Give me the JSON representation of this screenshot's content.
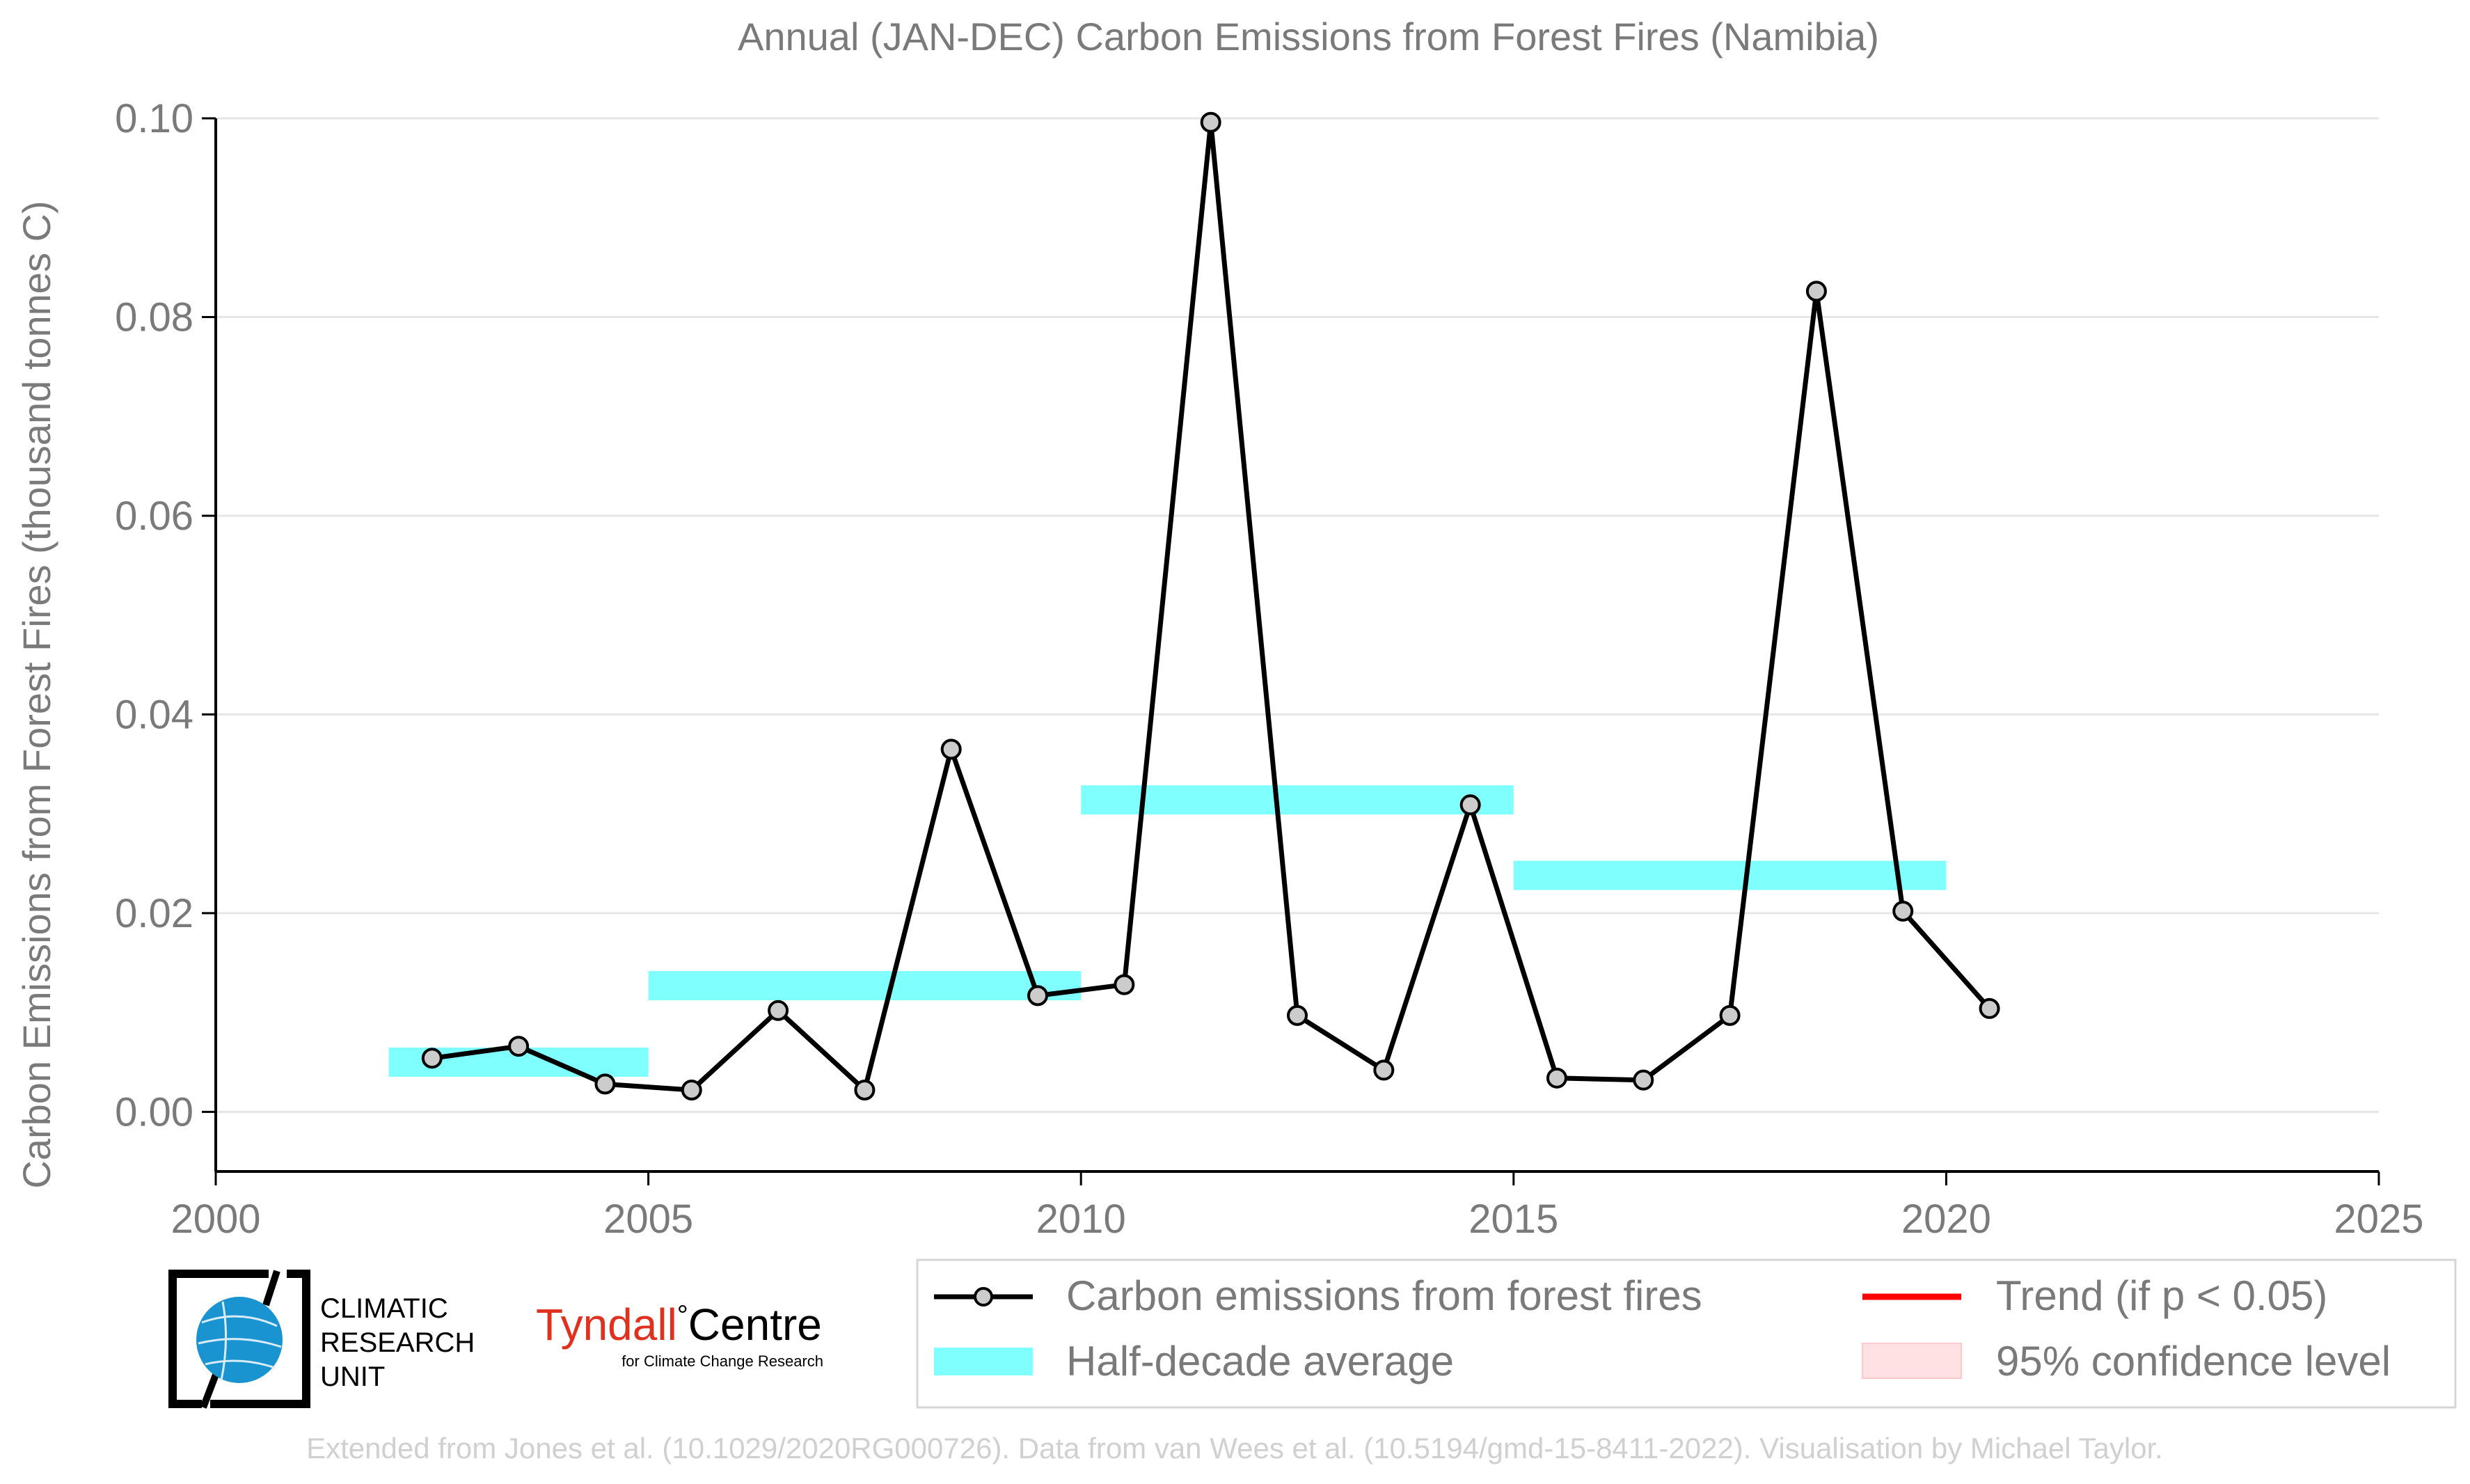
{
  "chart_data": {
    "type": "line",
    "title": "Annual (JAN-DEC) Carbon Emissions from Forest Fires (Namibia)",
    "xlabel": "",
    "ylabel": "Carbon Emissions from Forest Fires (thousand tonnes C)",
    "xlim": [
      2000,
      2025
    ],
    "ylim": [
      -0.006,
      0.1
    ],
    "x_ticks": [
      2000,
      2005,
      2010,
      2015,
      2020,
      2025
    ],
    "y_ticks": [
      0.0,
      0.02,
      0.04,
      0.06,
      0.08,
      0.1
    ],
    "y_tick_labels": [
      "0.00",
      "0.02",
      "0.04",
      "0.06",
      "0.08",
      "0.10"
    ],
    "grid": "horizontal",
    "series": [
      {
        "name": "Carbon emissions from forest fires",
        "color": "#000000",
        "marker_fill": "#cccccc",
        "x": [
          2002.5,
          2003.5,
          2004.5,
          2005.5,
          2006.5,
          2007.5,
          2008.5,
          2009.5,
          2010.5,
          2011.5,
          2012.5,
          2013.5,
          2014.5,
          2015.5,
          2016.5,
          2017.5,
          2018.5,
          2019.5,
          2020.5
        ],
        "values": [
          0.0054,
          0.0066,
          0.0028,
          0.0022,
          0.0102,
          0.0022,
          0.0365,
          0.0117,
          0.0128,
          0.0996,
          0.0097,
          0.0042,
          0.0309,
          0.0034,
          0.0032,
          0.0097,
          0.0826,
          0.0202,
          0.0104
        ]
      }
    ],
    "half_decade_average": {
      "name": "Half-decade average",
      "color": "#80ffff",
      "segments": [
        {
          "x_start": 2002,
          "x_end": 2005,
          "value": 0.005
        },
        {
          "x_start": 2005,
          "x_end": 2010,
          "value": 0.0127
        },
        {
          "x_start": 2010,
          "x_end": 2015,
          "value": 0.0314
        },
        {
          "x_start": 2015,
          "x_end": 2020,
          "value": 0.0238
        }
      ]
    },
    "legend": {
      "placement": "bottom-right",
      "entries": [
        {
          "label": "Carbon emissions from forest fires",
          "kind": "line-marker",
          "color": "#000000"
        },
        {
          "label": "Trend (if p < 0.05)",
          "kind": "line",
          "color": "#ff0000"
        },
        {
          "label": "Half-decade average",
          "kind": "band",
          "color": "#80ffff"
        },
        {
          "label": "95% confidence level",
          "kind": "patch",
          "color": "#ffe0e3"
        }
      ]
    }
  },
  "logos": {
    "cru_text": [
      "CLIMATIC",
      "RESEARCH",
      "UNIT"
    ],
    "tyndall_main": "Tyndall",
    "tyndall_degree": "°",
    "tyndall_centre": "Centre",
    "tyndall_sub": "for Climate Change Research"
  },
  "credit": "Extended from Jones et al. (10.1029/2020RG000726). Data from van Wees et al. (10.5194/gmd-15-8411-2022). Visualisation by Michael Taylor.",
  "colors": {
    "axis_text": "#7a7a7a",
    "grid": "#e6e6e6",
    "tyndall_red": "#e0301e",
    "cru_blue": "#1a93d1",
    "credit": "#d0d0d0"
  }
}
